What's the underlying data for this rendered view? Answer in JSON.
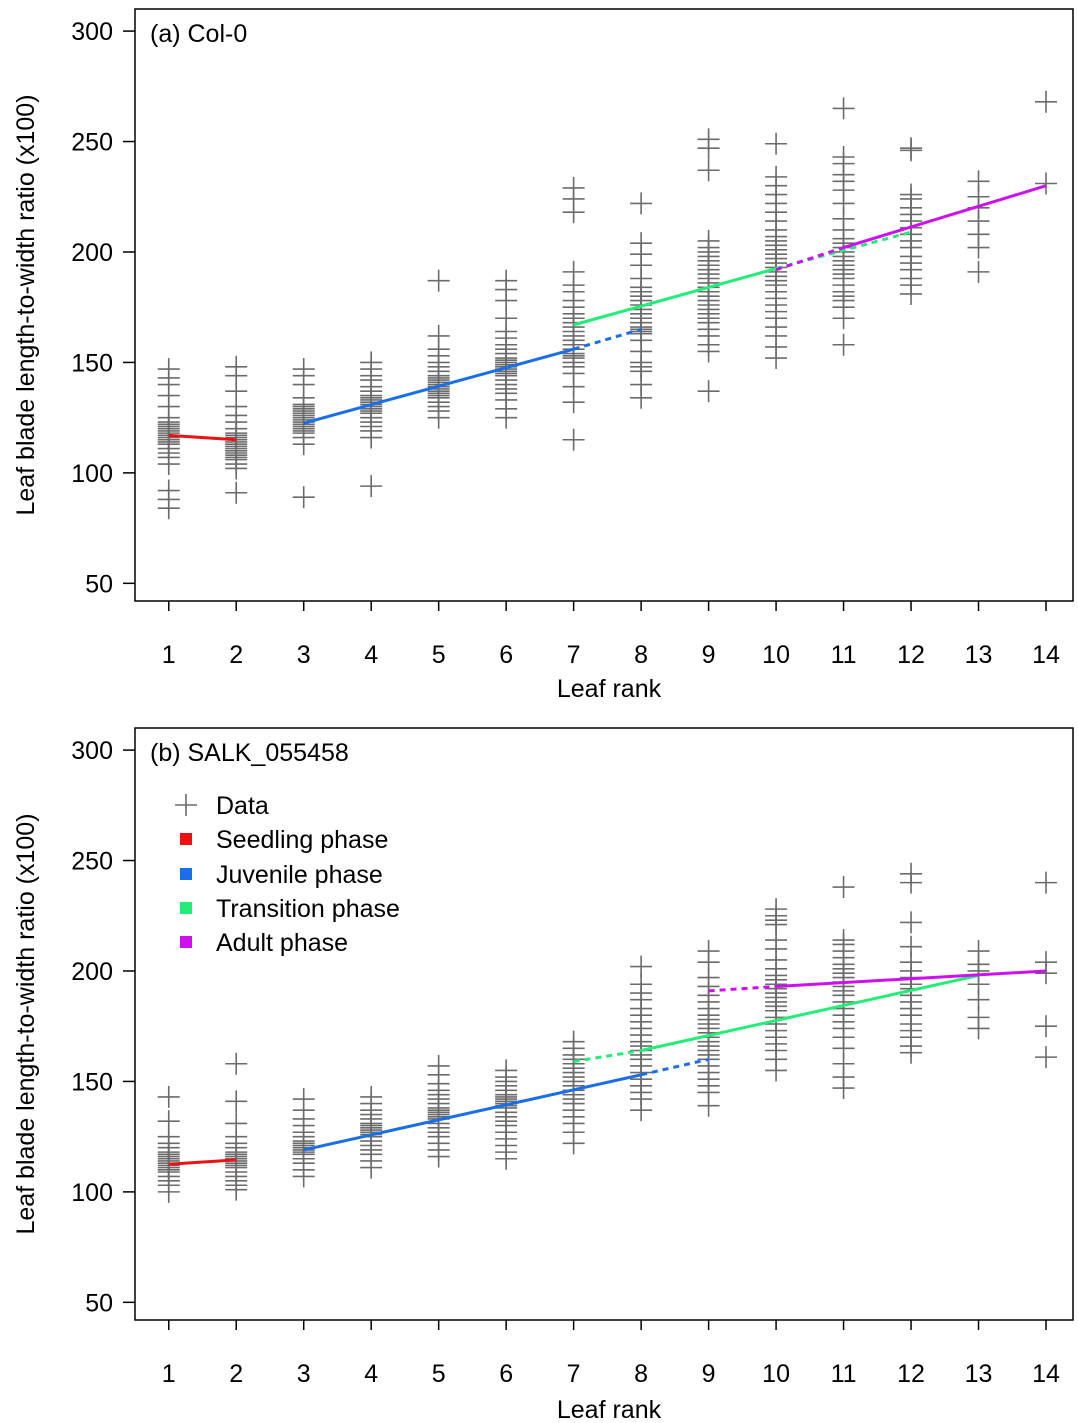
{
  "colors": {
    "data": "#6b6b6b",
    "seedling": "#ee1111",
    "juvenile": "#1a6fe8",
    "transition": "#22ee77",
    "adult": "#cc11ee"
  },
  "legend": {
    "items": [
      {
        "label": "Data",
        "marker": "plus",
        "color_key": "data"
      },
      {
        "label": "Seedling phase",
        "marker": "square",
        "color_key": "seedling"
      },
      {
        "label": "Juvenile phase",
        "marker": "square",
        "color_key": "juvenile"
      },
      {
        "label": "Transition phase",
        "marker": "square",
        "color_key": "transition"
      },
      {
        "label": "Adult phase",
        "marker": "square",
        "color_key": "adult"
      }
    ],
    "placement": "top-left of panel (b)"
  },
  "chart_data": [
    {
      "type": "scatter",
      "title": "(a) Col-0",
      "xlabel": "Leaf rank",
      "ylabel": "Leaf blade length-to-width ratio (x100)",
      "xlim": [
        0.5,
        14.4
      ],
      "ylim": [
        42,
        310
      ],
      "xticks": [
        1,
        2,
        3,
        4,
        5,
        6,
        7,
        8,
        9,
        10,
        11,
        12,
        13,
        14
      ],
      "yticks": [
        50,
        100,
        150,
        200,
        250,
        300
      ],
      "grid": false,
      "points": [
        {
          "x": 1,
          "y": [
            84,
            88,
            92,
            104,
            107,
            109,
            111,
            113,
            114,
            115,
            116,
            117,
            118,
            119,
            120,
            121,
            122,
            123,
            125,
            130,
            135,
            140,
            143,
            147
          ]
        },
        {
          "x": 2,
          "y": [
            91,
            102,
            104,
            106,
            107,
            108,
            109,
            110,
            111,
            112,
            113,
            114,
            115,
            116,
            117,
            118,
            120,
            123,
            126,
            130,
            137,
            144,
            148
          ]
        },
        {
          "x": 3,
          "y": [
            89,
            113,
            116,
            118,
            119,
            120,
            121,
            122,
            123,
            124,
            125,
            126,
            127,
            128,
            129,
            130,
            131,
            134,
            140,
            144,
            147
          ]
        },
        {
          "x": 4,
          "y": [
            94,
            116,
            119,
            121,
            123,
            125,
            127,
            128,
            129,
            130,
            131,
            132,
            133,
            134,
            135,
            137,
            139,
            142,
            144,
            147,
            150
          ]
        },
        {
          "x": 5,
          "y": [
            125,
            128,
            130,
            132,
            134,
            135,
            136,
            137,
            138,
            139,
            140,
            141,
            142,
            143,
            144,
            146,
            148,
            150,
            153,
            156,
            162,
            187
          ]
        },
        {
          "x": 6,
          "y": [
            125,
            129,
            133,
            136,
            138,
            140,
            142,
            144,
            145,
            146,
            147,
            148,
            149,
            150,
            151,
            152,
            154,
            156,
            158,
            161,
            164,
            170,
            178,
            183,
            187
          ]
        },
        {
          "x": 7,
          "y": [
            115,
            132,
            139,
            145,
            148,
            150,
            152,
            153,
            154,
            156,
            158,
            160,
            162,
            164,
            166,
            168,
            170,
            172,
            175,
            178,
            182,
            185,
            191,
            218,
            224,
            229
          ]
        },
        {
          "x": 8,
          "y": [
            134,
            140,
            146,
            148,
            150,
            155,
            160,
            163,
            164,
            165,
            166,
            168,
            170,
            172,
            174,
            176,
            178,
            180,
            182,
            184,
            188,
            194,
            199,
            204,
            222
          ]
        },
        {
          "x": 9,
          "y": [
            137,
            155,
            158,
            162,
            165,
            168,
            170,
            172,
            174,
            176,
            178,
            180,
            182,
            184,
            186,
            188,
            190,
            192,
            194,
            196,
            198,
            200,
            202,
            205,
            237,
            247,
            251
          ]
        },
        {
          "x": 10,
          "y": [
            152,
            157,
            162,
            166,
            170,
            173,
            176,
            179,
            182,
            185,
            187,
            189,
            191,
            193,
            195,
            197,
            199,
            201,
            203,
            205,
            207,
            210,
            214,
            218,
            222,
            226,
            230,
            234,
            249
          ]
        },
        {
          "x": 11,
          "y": [
            158,
            170,
            175,
            178,
            180,
            182,
            185,
            188,
            190,
            192,
            194,
            196,
            198,
            200,
            202,
            204,
            206,
            210,
            215,
            222,
            228,
            232,
            235,
            240,
            243,
            265
          ]
        },
        {
          "x": 12,
          "y": [
            181,
            185,
            188,
            192,
            195,
            198,
            202,
            205,
            208,
            211,
            214,
            217,
            220,
            224,
            226,
            246,
            247
          ]
        },
        {
          "x": 13,
          "y": [
            191,
            202,
            208,
            214,
            220,
            225,
            232
          ]
        },
        {
          "x": 14,
          "y": [
            231,
            268
          ]
        }
      ],
      "fits": [
        {
          "phase": "Seedling phase",
          "color_key": "seedling",
          "style": "solid",
          "x": [
            1,
            2
          ],
          "y": [
            117,
            115
          ]
        },
        {
          "phase": "Juvenile phase",
          "color_key": "juvenile",
          "style": "solid",
          "x": [
            3,
            7
          ],
          "y": [
            122.5,
            156
          ]
        },
        {
          "phase": "Juvenile phase",
          "color_key": "juvenile",
          "style": "dashed",
          "x": [
            7,
            8
          ],
          "y": [
            156,
            165
          ]
        },
        {
          "phase": "Transition phase",
          "color_key": "transition",
          "style": "solid",
          "x": [
            7,
            10
          ],
          "y": [
            167,
            192.5
          ]
        },
        {
          "phase": "Transition phase",
          "color_key": "transition",
          "style": "dashed",
          "x": [
            10,
            12
          ],
          "y": [
            192.5,
            209
          ]
        },
        {
          "phase": "Adult phase",
          "color_key": "adult",
          "style": "dashed",
          "x": [
            10,
            11
          ],
          "y": [
            192,
            202
          ]
        },
        {
          "phase": "Adult phase",
          "color_key": "adult",
          "style": "solid",
          "x": [
            11,
            14
          ],
          "y": [
            202,
            230
          ]
        }
      ]
    },
    {
      "type": "scatter",
      "title": "(b) SALK_055458",
      "xlabel": "Leaf rank",
      "ylabel": "Leaf blade length-to-width ratio (x100)",
      "xlim": [
        0.5,
        14.4
      ],
      "ylim": [
        42,
        310
      ],
      "xticks": [
        1,
        2,
        3,
        4,
        5,
        6,
        7,
        8,
        9,
        10,
        11,
        12,
        13,
        14
      ],
      "yticks": [
        50,
        100,
        150,
        200,
        250,
        300
      ],
      "grid": false,
      "points": [
        {
          "x": 1,
          "y": [
            100,
            103,
            105,
            107,
            109,
            110,
            111,
            112,
            113,
            114,
            115,
            116,
            117,
            118,
            120,
            122,
            125,
            132,
            143
          ]
        },
        {
          "x": 2,
          "y": [
            101,
            103,
            105,
            107,
            109,
            111,
            112,
            113,
            114,
            115,
            116,
            117,
            118,
            120,
            122,
            125,
            131,
            141,
            158
          ]
        },
        {
          "x": 3,
          "y": [
            107,
            110,
            113,
            115,
            117,
            118,
            119,
            120,
            121,
            122,
            123,
            125,
            127,
            130,
            133,
            137,
            142
          ]
        },
        {
          "x": 4,
          "y": [
            111,
            114,
            117,
            119,
            121,
            123,
            125,
            126,
            127,
            128,
            129,
            130,
            131,
            133,
            135,
            137,
            140,
            143
          ]
        },
        {
          "x": 5,
          "y": [
            116,
            119,
            122,
            125,
            127,
            129,
            131,
            133,
            134,
            135,
            136,
            137,
            138,
            140,
            142,
            144,
            146,
            149,
            153,
            157
          ]
        },
        {
          "x": 6,
          "y": [
            115,
            118,
            121,
            124,
            127,
            130,
            132,
            134,
            136,
            138,
            139,
            140,
            141,
            142,
            143,
            144,
            146,
            148,
            150,
            152,
            155
          ]
        },
        {
          "x": 7,
          "y": [
            122,
            127,
            131,
            134,
            137,
            140,
            142,
            144,
            146,
            148,
            150,
            152,
            154,
            156,
            158,
            160,
            162,
            165,
            168
          ]
        },
        {
          "x": 8,
          "y": [
            137,
            142,
            145,
            148,
            151,
            154,
            157,
            160,
            162,
            164,
            166,
            168,
            171,
            174,
            177,
            180,
            183,
            187,
            190,
            194,
            202
          ]
        },
        {
          "x": 9,
          "y": [
            139,
            145,
            148,
            151,
            154,
            157,
            160,
            162,
            164,
            166,
            168,
            170,
            172,
            174,
            176,
            178,
            180,
            183,
            186,
            189,
            193,
            197,
            204,
            209
          ]
        },
        {
          "x": 10,
          "y": [
            155,
            160,
            164,
            167,
            170,
            173,
            176,
            179,
            182,
            184,
            186,
            188,
            190,
            192,
            194,
            196,
            198,
            201,
            205,
            210,
            214,
            221,
            223,
            225,
            228
          ]
        },
        {
          "x": 11,
          "y": [
            147,
            152,
            158,
            165,
            170,
            174,
            177,
            180,
            183,
            186,
            189,
            191,
            193,
            195,
            197,
            199,
            201,
            203,
            206,
            209,
            212,
            214,
            238
          ]
        },
        {
          "x": 12,
          "y": [
            163,
            166,
            170,
            173,
            176,
            180,
            183,
            186,
            189,
            192,
            194,
            197,
            200,
            204,
            211,
            222,
            240,
            244
          ]
        },
        {
          "x": 13,
          "y": [
            174,
            179,
            187,
            194,
            200,
            203,
            209
          ]
        },
        {
          "x": 14,
          "y": [
            161,
            175,
            199,
            204,
            240
          ]
        }
      ],
      "fits": [
        {
          "phase": "Seedling phase",
          "color_key": "seedling",
          "style": "solid",
          "x": [
            1,
            2
          ],
          "y": [
            112.5,
            114.5
          ]
        },
        {
          "phase": "Juvenile phase",
          "color_key": "juvenile",
          "style": "solid",
          "x": [
            3,
            8
          ],
          "y": [
            119,
            153
          ]
        },
        {
          "phase": "Juvenile phase",
          "color_key": "juvenile",
          "style": "dashed",
          "x": [
            8,
            9
          ],
          "y": [
            153,
            160
          ]
        },
        {
          "phase": "Transition phase",
          "color_key": "transition",
          "style": "dashed",
          "x": [
            7,
            8
          ],
          "y": [
            159,
            164
          ]
        },
        {
          "phase": "Transition phase",
          "color_key": "transition",
          "style": "solid",
          "x": [
            8,
            13
          ],
          "y": [
            164,
            198
          ]
        },
        {
          "phase": "Adult phase",
          "color_key": "adult",
          "style": "dashed",
          "x": [
            9,
            10
          ],
          "y": [
            191,
            193
          ]
        },
        {
          "phase": "Adult phase",
          "color_key": "adult",
          "style": "solid",
          "x": [
            10,
            14
          ],
          "y": [
            193,
            200
          ]
        }
      ]
    }
  ]
}
